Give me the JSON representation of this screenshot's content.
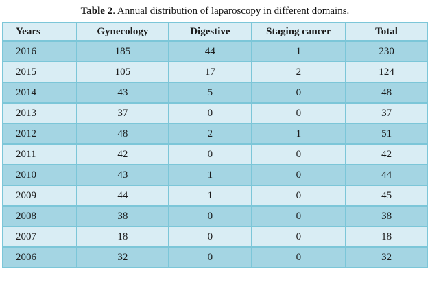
{
  "caption": {
    "label": "Table 2",
    "text": ". Annual distribution of laparoscopy in different domains."
  },
  "table": {
    "columns": [
      "Years",
      "Gynecology",
      "Digestive",
      "Staging cancer",
      "Total"
    ],
    "rows": [
      {
        "year": "2016",
        "values": [
          "185",
          "44",
          "1",
          "230"
        ]
      },
      {
        "year": "2015",
        "values": [
          "105",
          "17",
          "2",
          "124"
        ]
      },
      {
        "year": "2014",
        "values": [
          "43",
          "5",
          "0",
          "48"
        ]
      },
      {
        "year": "2013",
        "values": [
          "37",
          "0",
          "0",
          "37"
        ]
      },
      {
        "year": "2012",
        "values": [
          "48",
          "2",
          "1",
          "51"
        ]
      },
      {
        "year": "2011",
        "values": [
          "42",
          "0",
          "0",
          "42"
        ]
      },
      {
        "year": "2010",
        "values": [
          "43",
          "1",
          "0",
          "44"
        ]
      },
      {
        "year": "2009",
        "values": [
          "44",
          "1",
          "0",
          "45"
        ]
      },
      {
        "year": "2008",
        "values": [
          "38",
          "0",
          "0",
          "38"
        ]
      },
      {
        "year": "2007",
        "values": [
          "18",
          "0",
          "0",
          "18"
        ]
      },
      {
        "year": "2006",
        "values": [
          "32",
          "0",
          "0",
          "32"
        ]
      }
    ]
  },
  "colors": {
    "border": "#7cc6d8",
    "row_dark": "#a4d5e3",
    "row_light": "#d9edf4",
    "header_bg": "#d9edf4",
    "text": "#1c1c1c"
  },
  "chart_data": {
    "type": "table",
    "title": "Table 2. Annual distribution of laparoscopy in different domains.",
    "categories": [
      "2016",
      "2015",
      "2014",
      "2013",
      "2012",
      "2011",
      "2010",
      "2009",
      "2008",
      "2007",
      "2006"
    ],
    "series": [
      {
        "name": "Gynecology",
        "values": [
          185,
          105,
          43,
          37,
          48,
          42,
          43,
          44,
          38,
          18,
          32
        ]
      },
      {
        "name": "Digestive",
        "values": [
          44,
          17,
          5,
          0,
          2,
          0,
          1,
          1,
          0,
          0,
          0
        ]
      },
      {
        "name": "Staging cancer",
        "values": [
          1,
          2,
          0,
          0,
          1,
          0,
          0,
          0,
          0,
          0,
          0
        ]
      },
      {
        "name": "Total",
        "values": [
          230,
          124,
          48,
          37,
          51,
          42,
          44,
          45,
          38,
          18,
          32
        ]
      }
    ]
  }
}
